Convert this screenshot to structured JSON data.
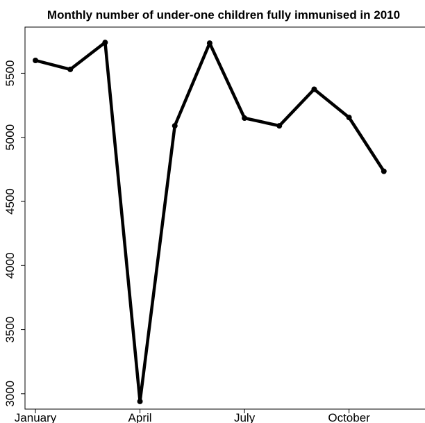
{
  "chart_data": {
    "type": "line",
    "title": "Monthly number of under-one children fully immunised in 2010",
    "xlabel": "",
    "ylabel": "",
    "x": [
      1,
      2,
      3,
      4,
      5,
      6,
      7,
      8,
      9,
      10,
      11
    ],
    "y": [
      5600,
      5530,
      5740,
      2940,
      5090,
      5735,
      5150,
      5090,
      5375,
      5155,
      4735
    ],
    "xticks": [
      1,
      4,
      7,
      10
    ],
    "xtick_labels": [
      "January",
      "April",
      "July",
      "October"
    ],
    "yticks": [
      3000,
      3500,
      4000,
      4500,
      5000,
      5500
    ],
    "ytick_labels": [
      "3000",
      "3500",
      "4000",
      "4500",
      "5000",
      "5500"
    ],
    "xlim": [
      0.7,
      12.3
    ],
    "ylim": [
      2880,
      5860
    ],
    "line_color": "#000000",
    "grid": false,
    "legend": false
  }
}
